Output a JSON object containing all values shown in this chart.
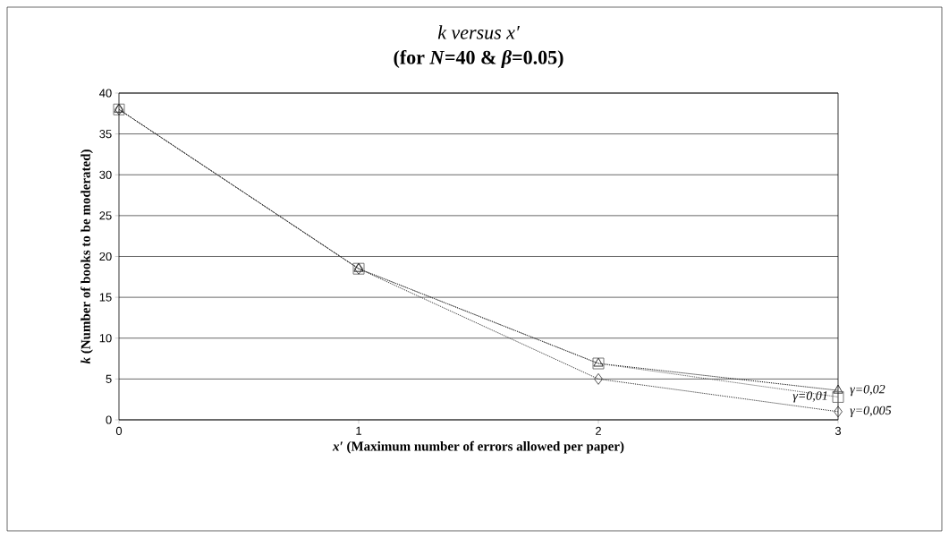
{
  "chart_data": {
    "type": "line",
    "title": "k versus x′",
    "subtitle": "(for *N*=40 & *β*=0.05)",
    "xlabel": "*x′* (Maximum number of errors allowed per paper)",
    "ylabel": "*k* (Number of books to be moderated)",
    "x": [
      0,
      1,
      2,
      3
    ],
    "series": [
      {
        "name": "γ=0,02",
        "color": "#000000",
        "marker": "triangle",
        "values": [
          38,
          18.5,
          6.9,
          3.6
        ]
      },
      {
        "name": "γ=0,01",
        "color": "#555555",
        "marker": "square",
        "values": [
          38,
          18.5,
          6.9,
          2.8
        ]
      },
      {
        "name": "γ=0,005",
        "color": "#2a2a2a",
        "marker": "diamond",
        "values": [
          38,
          18.5,
          5,
          1
        ]
      }
    ],
    "xlim": [
      0,
      3
    ],
    "ylim": [
      0,
      40
    ],
    "xticks": [
      0,
      1,
      2,
      3
    ],
    "yticks": [
      0,
      5,
      10,
      15,
      20,
      25,
      30,
      35,
      40
    ],
    "grid": "y",
    "line_style": "dotted"
  }
}
